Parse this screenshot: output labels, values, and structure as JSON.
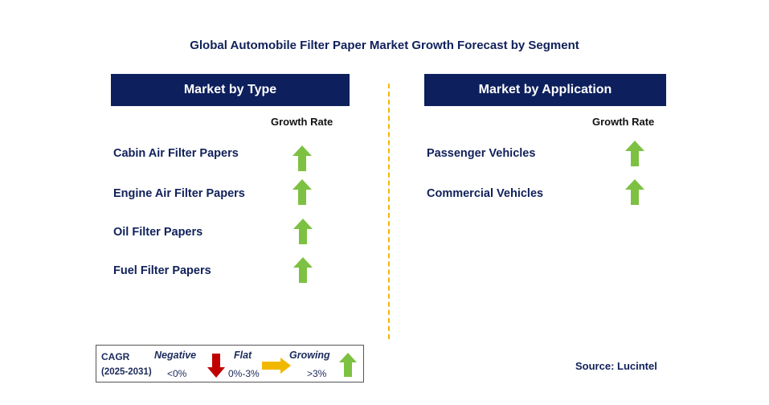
{
  "title": "Global Automobile Filter Paper Market Growth Forecast by Segment",
  "left_panel": {
    "header": "Market by Type",
    "growth_label": "Growth Rate",
    "items": [
      {
        "label": "Cabin Air Filter Papers",
        "trend": "growing"
      },
      {
        "label": "Engine Air Filter Papers",
        "trend": "growing"
      },
      {
        "label": "Oil Filter Papers",
        "trend": "growing"
      },
      {
        "label": "Fuel Filter Papers",
        "trend": "growing"
      }
    ]
  },
  "right_panel": {
    "header": "Market by Application",
    "growth_label": "Growth Rate",
    "items": [
      {
        "label": "Passenger Vehicles",
        "trend": "growing"
      },
      {
        "label": "Commercial Vehicles",
        "trend": "growing"
      }
    ]
  },
  "legend": {
    "cagr_label": "CAGR",
    "period": "(2025-2031)",
    "negative_label": "Negative",
    "negative_range": "<0%",
    "flat_label": "Flat",
    "flat_range": "0%-3%",
    "growing_label": "Growing",
    "growing_range": ">3%"
  },
  "source": "Source: Lucintel",
  "colors": {
    "header_bg": "#0d1f5c",
    "growing_arrow": "#7dc142",
    "negative_arrow": "#c00000",
    "flat_arrow": "#f2b800",
    "divider": "#f2b800"
  },
  "icons": {
    "growing": "up-arrow-icon",
    "negative": "down-arrow-icon",
    "flat": "right-arrow-icon"
  }
}
